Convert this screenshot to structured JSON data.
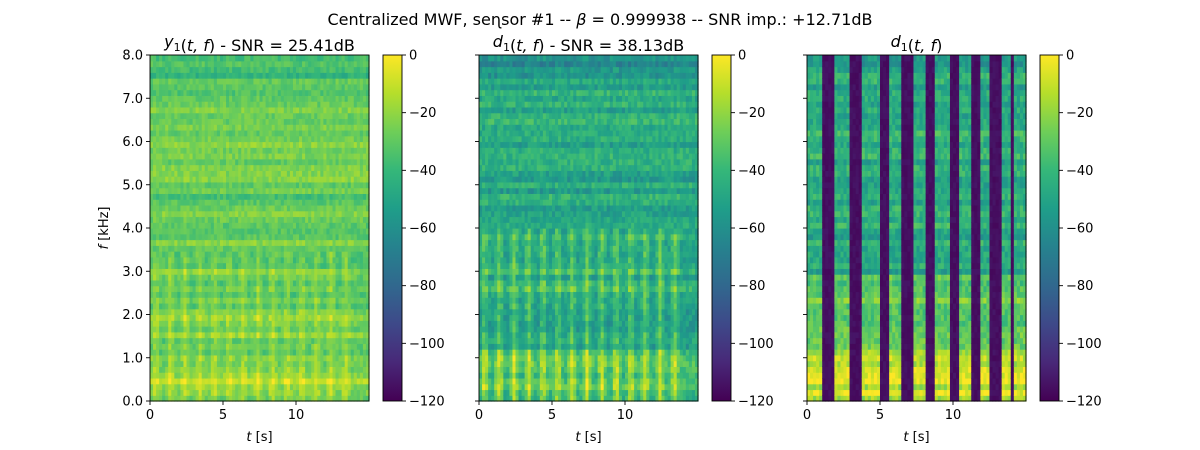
{
  "figure": {
    "title_parts": {
      "pre": "Centralized MWF, seɳsor #1 -- ",
      "beta_sym": "β",
      "post": " = 0.999938 -- SNR imp.: +12.71dB"
    }
  },
  "colormap": {
    "name": "viridis",
    "stops": [
      "#440154",
      "#482878",
      "#3e4989",
      "#31688e",
      "#26828e",
      "#1f9e89",
      "#35b779",
      "#6ece58",
      "#b5de2b",
      "#fde725"
    ]
  },
  "chart_data": [
    {
      "type": "heatmap",
      "title_parts": {
        "func": "y",
        "sub": "1",
        "args": "(t, f)",
        "suffix": " - SNR = 25.41dB"
      },
      "xlabel": {
        "var": "t",
        "unit": " [s]"
      },
      "ylabel": {
        "var": "f",
        "unit": " [kHz]"
      },
      "xlim": [
        0,
        15
      ],
      "ylim": [
        0,
        8.0
      ],
      "xticks": [
        0,
        5,
        10
      ],
      "xtick_labels": [
        "0",
        "5",
        "10"
      ],
      "yticks": [
        0,
        1,
        2,
        3,
        4,
        5,
        6,
        7,
        8
      ],
      "ytick_labels": [
        "0.0",
        "1.0",
        "2.0",
        "3.0",
        "4.0",
        "5.0",
        "6.0",
        "7.0",
        "8.0"
      ],
      "show_ytick_labels": true,
      "colorbar": {
        "range_db": [
          -120,
          0
        ],
        "ticks": [
          0,
          -20,
          -40,
          -60,
          -80,
          -100,
          -120
        ],
        "tick_labels": [
          "0",
          "−20",
          "−40",
          "−60",
          "−80",
          "−100",
          "−120"
        ]
      },
      "speech_bursts_s": [
        0.4,
        1.4,
        2.4,
        3.4,
        4.4,
        5.4,
        6.4,
        7.4,
        8.4,
        9.4,
        10.4,
        11.4,
        12.4,
        13.4
      ],
      "gaps_s": []
    },
    {
      "type": "heatmap",
      "title_parts": {
        "func": "d",
        "sub": "1",
        "args": "(t, f)",
        "suffix": " - SNR = 38.13dB"
      },
      "xlabel": {
        "var": "t",
        "unit": " [s]"
      },
      "ylabel": null,
      "xlim": [
        0,
        15
      ],
      "ylim": [
        0,
        8.0
      ],
      "xticks": [
        0,
        5,
        10
      ],
      "xtick_labels": [
        "0",
        "5",
        "10"
      ],
      "yticks": [
        0,
        1,
        2,
        3,
        4,
        5,
        6,
        7,
        8
      ],
      "ytick_labels": [],
      "show_ytick_labels": false,
      "colorbar": {
        "range_db": [
          -120,
          0
        ],
        "ticks": [
          0,
          -20,
          -40,
          -60,
          -80,
          -100,
          -120
        ],
        "tick_labels": [
          "0",
          "−20",
          "−40",
          "−60",
          "−80",
          "−100",
          "−120"
        ]
      },
      "speech_bursts_s": [
        0.4,
        1.4,
        2.4,
        3.4,
        4.4,
        5.4,
        6.4,
        7.4,
        8.4,
        9.4,
        10.4,
        11.4,
        12.4,
        13.4
      ],
      "gaps_s": []
    },
    {
      "type": "heatmap",
      "title_parts": {
        "func": "d",
        "sub": "1",
        "args": "(t, f)",
        "suffix": ""
      },
      "xlabel": {
        "var": "t",
        "unit": " [s]"
      },
      "ylabel": null,
      "xlim": [
        0,
        15
      ],
      "ylim": [
        0,
        8.0
      ],
      "xticks": [
        0,
        5,
        10
      ],
      "xtick_labels": [
        "0",
        "5",
        "10"
      ],
      "yticks": [
        0,
        1,
        2,
        3,
        4,
        5,
        6,
        7,
        8
      ],
      "ytick_labels": [],
      "show_ytick_labels": false,
      "colorbar": {
        "range_db": [
          -120,
          0
        ],
        "ticks": [
          0,
          -20,
          -40,
          -60,
          -80,
          -100,
          -120
        ],
        "tick_labels": [
          "0",
          "−20",
          "−40",
          "−60",
          "−80",
          "−100",
          "−120"
        ]
      },
      "speech_bursts_s": [
        0.4,
        1.4,
        2.4,
        3.4,
        4.4,
        5.4,
        6.4,
        7.4,
        8.4,
        9.4,
        10.4,
        11.4,
        12.4,
        13.4
      ],
      "gaps_s": [
        [
          1.0,
          1.8
        ],
        [
          2.9,
          3.8
        ],
        [
          5.0,
          5.6
        ],
        [
          6.5,
          7.2
        ],
        [
          8.1,
          8.8
        ],
        [
          9.7,
          10.4
        ],
        [
          11.2,
          11.9
        ],
        [
          12.6,
          13.3
        ],
        [
          13.9,
          14.1
        ]
      ]
    }
  ]
}
